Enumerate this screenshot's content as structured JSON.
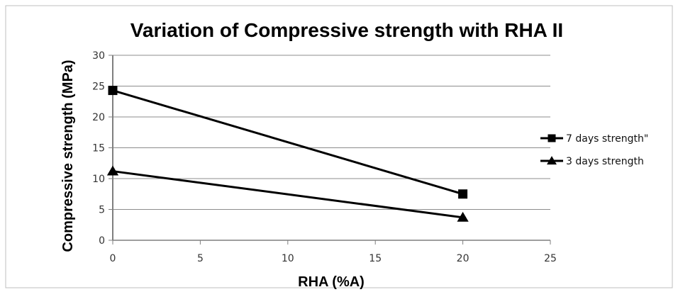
{
  "chart_data": {
    "type": "line",
    "title": "Variation of Compressive strength with RHA II",
    "xlabel": "RHA (%A)",
    "ylabel": "Compressive strength (MPa)",
    "xlim": [
      0,
      25
    ],
    "ylim": [
      0,
      30
    ],
    "x_ticks": [
      0,
      5,
      10,
      15,
      20,
      25
    ],
    "y_ticks": [
      0,
      5,
      10,
      15,
      20,
      25,
      30
    ],
    "grid": "horizontal",
    "legend_position": "right",
    "series": [
      {
        "name": "7 days strength\"",
        "marker": "square",
        "color": "#000000",
        "x": [
          0,
          20
        ],
        "y": [
          24.3,
          7.5
        ]
      },
      {
        "name": "3 days strength",
        "marker": "triangle",
        "color": "#000000",
        "x": [
          0,
          20
        ],
        "y": [
          11.2,
          3.7
        ]
      }
    ]
  }
}
